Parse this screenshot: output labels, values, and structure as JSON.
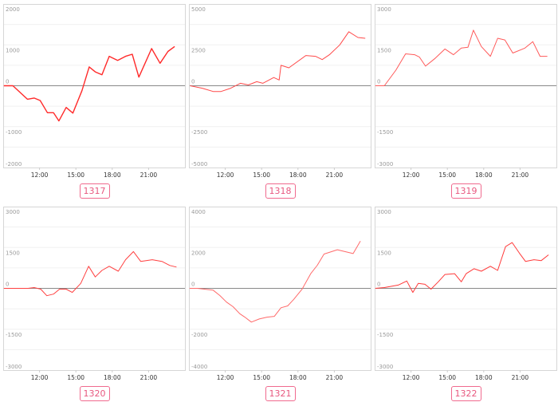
{
  "chart_data": [
    {
      "type": "line",
      "label": "1317",
      "color": "#ff2a2a",
      "ylim": [
        -2000,
        2000
      ],
      "yticks": [
        2000,
        1000,
        0,
        -1000,
        -2000
      ],
      "xlim": [
        9,
        24
      ],
      "xticks": [
        "12:00",
        "15:00",
        "18:00",
        "21:00"
      ],
      "grid": true,
      "x": [
        9.05,
        9.8,
        11.0,
        11.55,
        12.05,
        12.65,
        13.15,
        13.6,
        14.2,
        14.75,
        15.5,
        16.1,
        16.6,
        17.15,
        17.75,
        18.45,
        19.1,
        19.65,
        20.2,
        21.25,
        21.95,
        22.6,
        23.15
      ],
      "y": [
        0,
        0,
        -330,
        -300,
        -360,
        -660,
        -660,
        -860,
        -530,
        -670,
        -120,
        460,
        340,
        270,
        720,
        620,
        720,
        770,
        210,
        910,
        550,
        840,
        960
      ]
    },
    {
      "type": "line",
      "label": "1318",
      "color": "#ff4a4a",
      "ylim": [
        -5000,
        5000
      ],
      "yticks": [
        5000,
        2500,
        0,
        -2500,
        -5000
      ],
      "xlim": [
        9,
        24
      ],
      "xticks": [
        "12:00",
        "15:00",
        "18:00",
        "21:00"
      ],
      "grid": true,
      "x": [
        9.1,
        10.1,
        11.0,
        11.65,
        12.45,
        13.25,
        13.9,
        14.6,
        15.1,
        16.0,
        16.45,
        16.6,
        17.25,
        18.65,
        19.45,
        20.0,
        20.6,
        21.45,
        22.2,
        22.95,
        23.55
      ],
      "y": [
        0,
        -150,
        -350,
        -350,
        -150,
        150,
        50,
        250,
        150,
        500,
        350,
        1250,
        1100,
        1850,
        1800,
        1600,
        1900,
        2500,
        3300,
        2950,
        2900
      ]
    },
    {
      "type": "line",
      "label": "1319",
      "color": "#ff5a5a",
      "ylim": [
        -3000,
        3000
      ],
      "yticks": [
        3000,
        1500,
        0,
        -1500,
        -3000
      ],
      "xlim": [
        9,
        24
      ],
      "xticks": [
        "12:00",
        "15:00",
        "18:00",
        "21:00"
      ],
      "grid": true,
      "x": [
        9.05,
        9.8,
        10.75,
        11.55,
        12.3,
        12.7,
        13.2,
        13.95,
        14.8,
        15.5,
        16.15,
        16.7,
        17.15,
        17.8,
        18.55,
        19.15,
        19.75,
        20.4,
        21.4,
        22.05,
        22.65,
        23.25
      ],
      "y": [
        0,
        0,
        570,
        1170,
        1140,
        1050,
        720,
        990,
        1350,
        1140,
        1380,
        1410,
        2040,
        1440,
        1080,
        1740,
        1680,
        1200,
        1380,
        1620,
        1080,
        1080
      ]
    },
    {
      "type": "line",
      "label": "1320",
      "color": "#ff4040",
      "ylim": [
        -3000,
        3000
      ],
      "yticks": [
        3000,
        1500,
        0,
        -1500,
        -3000
      ],
      "xlim": [
        9,
        24
      ],
      "xticks": [
        "12:00",
        "15:00",
        "18:00",
        "21:00"
      ],
      "grid": true,
      "x": [
        9.05,
        11.05,
        11.55,
        12.1,
        12.6,
        13.15,
        13.65,
        14.2,
        14.7,
        15.4,
        16.05,
        16.6,
        17.15,
        17.75,
        18.5,
        19.1,
        19.75,
        20.35,
        21.3,
        22.1,
        22.75,
        23.3
      ],
      "y": [
        0,
        0,
        30,
        -30,
        -270,
        -210,
        -30,
        -30,
        -150,
        180,
        810,
        420,
        660,
        810,
        630,
        1050,
        1350,
        990,
        1050,
        990,
        840,
        780
      ]
    },
    {
      "type": "line",
      "label": "1321",
      "color": "#ff6a6a",
      "ylim": [
        -4000,
        4000
      ],
      "yticks": [
        4000,
        2000,
        0,
        -2000,
        -4000
      ],
      "xlim": [
        9,
        24
      ],
      "xticks": [
        "12:00",
        "15:00",
        "18:00",
        "21:00"
      ],
      "grid": true,
      "x": [
        9.05,
        9.7,
        11.0,
        11.55,
        12.1,
        12.65,
        13.2,
        13.6,
        14.15,
        14.8,
        15.45,
        16.05,
        16.6,
        17.15,
        17.65,
        18.35,
        19.05,
        19.6,
        20.15,
        21.25,
        22.55,
        23.15
      ],
      "y": [
        0,
        0,
        -90,
        -350,
        -670,
        -900,
        -1240,
        -1400,
        -1650,
        -1500,
        -1410,
        -1370,
        -950,
        -860,
        -540,
        -30,
        720,
        1130,
        1680,
        1890,
        1700,
        2310
      ]
    },
    {
      "type": "line",
      "label": "1322",
      "color": "#ff3a3a",
      "ylim": [
        -3000,
        3000
      ],
      "yticks": [
        3000,
        1500,
        0,
        -1500,
        -3000
      ],
      "xlim": [
        9,
        24
      ],
      "xticks": [
        "12:00",
        "15:00",
        "18:00",
        "21:00"
      ],
      "grid": true,
      "x": [
        9.05,
        9.8,
        10.95,
        11.65,
        12.15,
        12.6,
        13.15,
        13.65,
        14.25,
        14.8,
        15.6,
        16.15,
        16.55,
        17.2,
        17.8,
        18.55,
        19.15,
        19.8,
        20.35,
        20.95,
        21.45,
        22.15,
        22.75,
        23.35
      ],
      "y": [
        0,
        30,
        120,
        270,
        -150,
        180,
        150,
        -30,
        240,
        510,
        540,
        240,
        540,
        720,
        630,
        810,
        660,
        1530,
        1680,
        1290,
        990,
        1050,
        1020,
        1230
      ]
    }
  ]
}
